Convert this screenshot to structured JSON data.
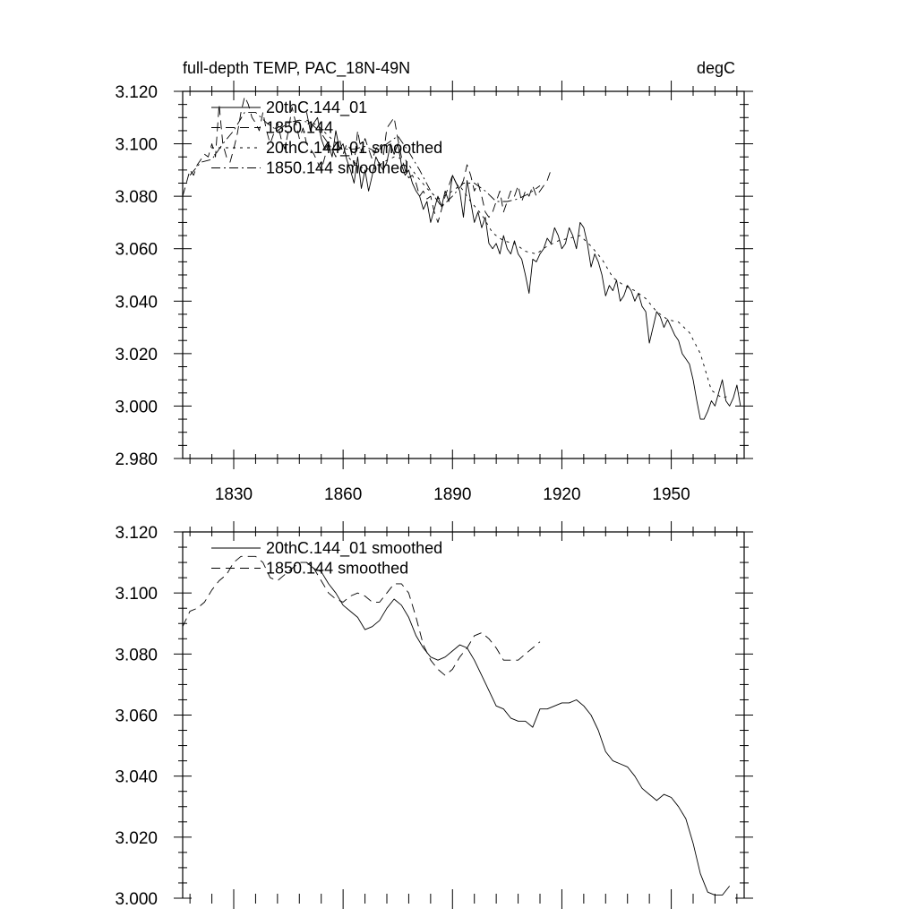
{
  "chart_data": [
    {
      "type": "line",
      "title_left": "full-depth TEMP, PAC_18N-49N",
      "title_right": "degC",
      "xlabel": "",
      "ylabel": "",
      "xlim": [
        1816,
        1970
      ],
      "ylim": [
        2.98,
        3.12
      ],
      "xticks": [
        1830,
        1860,
        1890,
        1920,
        1950
      ],
      "xtick_labels": [
        "1830",
        "1860",
        "1890",
        "1920",
        "1950"
      ],
      "yticks": [
        2.98,
        3.0,
        3.02,
        3.04,
        3.06,
        3.08,
        3.1,
        3.12
      ],
      "ytick_labels": [
        "2.980",
        "3.000",
        "3.020",
        "3.040",
        "3.060",
        "3.080",
        "3.100",
        "3.120"
      ],
      "legend": "top-left",
      "series": [
        {
          "name": "20thC.144_01",
          "style": "solid",
          "x": [
            1850,
            1851,
            1852,
            1853,
            1854,
            1855,
            1856,
            1857,
            1858,
            1859,
            1860,
            1861,
            1862,
            1863,
            1864,
            1865,
            1866,
            1867,
            1868,
            1869,
            1870,
            1871,
            1872,
            1873,
            1874,
            1875,
            1876,
            1877,
            1878,
            1879,
            1880,
            1881,
            1882,
            1883,
            1884,
            1885,
            1886,
            1887,
            1888,
            1889,
            1890,
            1891,
            1892,
            1893,
            1894,
            1895,
            1896,
            1897,
            1898,
            1899,
            1900,
            1901,
            1902,
            1903,
            1904,
            1905,
            1906,
            1907,
            1908,
            1909,
            1910,
            1911,
            1912,
            1913,
            1914,
            1915,
            1916,
            1917,
            1918,
            1919,
            1920,
            1921,
            1922,
            1923,
            1924,
            1925,
            1926,
            1927,
            1928,
            1929,
            1930,
            1931,
            1932,
            1933,
            1934,
            1935,
            1936,
            1937,
            1938,
            1939,
            1940,
            1941,
            1942,
            1943,
            1944,
            1945,
            1946,
            1947,
            1948,
            1949,
            1950,
            1951,
            1952,
            1953,
            1954,
            1955,
            1956,
            1957,
            1958,
            1959,
            1960,
            1961,
            1962,
            1963,
            1964,
            1965,
            1966,
            1967,
            1968,
            1969
          ],
          "y": [
            3.112,
            3.105,
            3.108,
            3.11,
            3.102,
            3.098,
            3.1,
            3.095,
            3.105,
            3.098,
            3.1,
            3.094,
            3.09,
            3.085,
            3.095,
            3.083,
            3.09,
            3.082,
            3.088,
            3.095,
            3.092,
            3.09,
            3.093,
            3.1,
            3.096,
            3.1,
            3.092,
            3.088,
            3.09,
            3.085,
            3.082,
            3.08,
            3.075,
            3.078,
            3.07,
            3.075,
            3.08,
            3.076,
            3.082,
            3.078,
            3.088,
            3.085,
            3.082,
            3.072,
            3.086,
            3.078,
            3.07,
            3.074,
            3.068,
            3.072,
            3.062,
            3.06,
            3.062,
            3.058,
            3.065,
            3.06,
            3.058,
            3.063,
            3.058,
            3.056,
            3.05,
            3.043,
            3.056,
            3.055,
            3.058,
            3.06,
            3.064,
            3.062,
            3.068,
            3.065,
            3.06,
            3.062,
            3.068,
            3.065,
            3.06,
            3.07,
            3.068,
            3.062,
            3.053,
            3.058,
            3.055,
            3.05,
            3.042,
            3.046,
            3.044,
            3.048,
            3.04,
            3.042,
            3.046,
            3.044,
            3.04,
            3.043,
            3.038,
            3.036,
            3.024,
            3.03,
            3.036,
            3.034,
            3.03,
            3.033,
            3.03,
            3.027,
            3.025,
            3.02,
            3.018,
            3.016,
            3.01,
            3.002,
            2.995,
            2.995,
            2.998,
            3.002,
            3.0,
            3.005,
            3.01,
            3.002,
            3.0,
            3.003,
            3.008,
            3.0
          ]
        },
        {
          "name": "1850.144",
          "style": "dashed",
          "x": [
            1816,
            1817,
            1818,
            1819,
            1820,
            1821,
            1822,
            1823,
            1824,
            1825,
            1826,
            1827,
            1828,
            1829,
            1830,
            1831,
            1832,
            1833,
            1834,
            1835,
            1836,
            1837,
            1838,
            1839,
            1840,
            1841,
            1842,
            1843,
            1844,
            1845,
            1846,
            1847,
            1848,
            1849,
            1850,
            1851,
            1852,
            1853,
            1854,
            1855,
            1856,
            1857,
            1858,
            1859,
            1860,
            1861,
            1862,
            1863,
            1864,
            1865,
            1866,
            1867,
            1868,
            1869,
            1870,
            1871,
            1872,
            1873,
            1874,
            1875,
            1876,
            1877,
            1878,
            1879,
            1880,
            1881,
            1882,
            1883,
            1884,
            1885,
            1886,
            1887,
            1888,
            1889,
            1890,
            1891,
            1892,
            1893,
            1894,
            1895,
            1896,
            1897,
            1898,
            1899,
            1900,
            1901,
            1902,
            1903,
            1904,
            1905,
            1906,
            1907,
            1908,
            1909,
            1910,
            1911,
            1912,
            1913,
            1914,
            1915,
            1916,
            1917
          ],
          "y": [
            3.08,
            3.085,
            3.09,
            3.088,
            3.092,
            3.094,
            3.096,
            3.095,
            3.1,
            3.095,
            3.115,
            3.1,
            3.095,
            3.093,
            3.098,
            3.104,
            3.112,
            3.118,
            3.115,
            3.11,
            3.108,
            3.105,
            3.112,
            3.105,
            3.1,
            3.104,
            3.108,
            3.102,
            3.098,
            3.105,
            3.114,
            3.108,
            3.102,
            3.106,
            3.1,
            3.098,
            3.096,
            3.093,
            3.09,
            3.095,
            3.1,
            3.098,
            3.095,
            3.102,
            3.096,
            3.1,
            3.098,
            3.092,
            3.105,
            3.097,
            3.102,
            3.098,
            3.094,
            3.098,
            3.1,
            3.095,
            3.106,
            3.108,
            3.11,
            3.102,
            3.095,
            3.09,
            3.087,
            3.088,
            3.085,
            3.08,
            3.082,
            3.079,
            3.08,
            3.074,
            3.07,
            3.075,
            3.08,
            3.084,
            3.088,
            3.085,
            3.083,
            3.086,
            3.092,
            3.088,
            3.082,
            3.085,
            3.08,
            3.074,
            3.072,
            3.074,
            3.078,
            3.082,
            3.074,
            3.078,
            3.082,
            3.08,
            3.084,
            3.078,
            3.082,
            3.08,
            3.084,
            3.08,
            3.082,
            3.084,
            3.086,
            3.09
          ]
        },
        {
          "name": "20thC.144_01 smoothed",
          "style": "dotted",
          "x": [
            1850,
            1853,
            1856,
            1859,
            1862,
            1865,
            1868,
            1871,
            1874,
            1877,
            1880,
            1883,
            1886,
            1889,
            1892,
            1895,
            1898,
            1901,
            1904,
            1907,
            1910,
            1913,
            1916,
            1919,
            1922,
            1925,
            1928,
            1931,
            1934,
            1937,
            1940,
            1943,
            1946,
            1949,
            1952,
            1955,
            1958,
            1961,
            1964,
            1966
          ],
          "y": [
            3.109,
            3.107,
            3.103,
            3.099,
            3.094,
            3.091,
            3.09,
            3.093,
            3.095,
            3.094,
            3.088,
            3.083,
            3.079,
            3.081,
            3.084,
            3.078,
            3.073,
            3.066,
            3.063,
            3.062,
            3.059,
            3.058,
            3.061,
            3.063,
            3.064,
            3.065,
            3.061,
            3.056,
            3.049,
            3.046,
            3.044,
            3.041,
            3.036,
            3.033,
            3.032,
            3.028,
            3.02,
            3.006,
            3.003,
            3.004
          ]
        },
        {
          "name": "1850.144 smoothed",
          "style": "dashdot",
          "x": [
            1818,
            1821,
            1824,
            1827,
            1830,
            1833,
            1836,
            1839,
            1842,
            1845,
            1848,
            1851,
            1854,
            1857,
            1860,
            1863,
            1866,
            1869,
            1872,
            1875,
            1878,
            1881,
            1884,
            1887,
            1890,
            1893,
            1896,
            1899,
            1902,
            1905,
            1908,
            1911,
            1914
          ],
          "y": [
            3.088,
            3.093,
            3.094,
            3.1,
            3.105,
            3.112,
            3.112,
            3.108,
            3.105,
            3.108,
            3.109,
            3.108,
            3.104,
            3.098,
            3.098,
            3.098,
            3.099,
            3.097,
            3.1,
            3.103,
            3.097,
            3.09,
            3.082,
            3.076,
            3.08,
            3.085,
            3.085,
            3.082,
            3.078,
            3.078,
            3.079,
            3.081,
            3.084
          ]
        }
      ]
    },
    {
      "type": "line",
      "xlabel": "",
      "ylabel": "",
      "xlim": [
        1816,
        1970
      ],
      "ylim": [
        3.0,
        3.12
      ],
      "xticks": [
        1830,
        1860,
        1890,
        1920,
        1950
      ],
      "yticks": [
        3.0,
        3.02,
        3.04,
        3.06,
        3.08,
        3.1,
        3.12
      ],
      "ytick_labels": [
        "3.000",
        "3.020",
        "3.040",
        "3.060",
        "3.080",
        "3.100",
        "3.120"
      ],
      "legend": "top-left",
      "series": [
        {
          "name": "20thC.144_01 smoothed",
          "style": "solid",
          "x": [
            1850,
            1852,
            1854,
            1856,
            1858,
            1860,
            1862,
            1864,
            1866,
            1868,
            1870,
            1872,
            1874,
            1876,
            1878,
            1880,
            1882,
            1884,
            1886,
            1888,
            1890,
            1892,
            1894,
            1896,
            1898,
            1900,
            1902,
            1904,
            1906,
            1908,
            1910,
            1912,
            1914,
            1916,
            1918,
            1920,
            1922,
            1924,
            1926,
            1928,
            1930,
            1932,
            1934,
            1936,
            1938,
            1940,
            1942,
            1944,
            1946,
            1948,
            1950,
            1952,
            1954,
            1956,
            1958,
            1960,
            1962,
            1964,
            1966
          ],
          "y": [
            3.11,
            3.108,
            3.107,
            3.103,
            3.1,
            3.096,
            3.094,
            3.092,
            3.088,
            3.089,
            3.091,
            3.095,
            3.098,
            3.096,
            3.092,
            3.086,
            3.082,
            3.079,
            3.078,
            3.079,
            3.081,
            3.083,
            3.082,
            3.078,
            3.073,
            3.068,
            3.063,
            3.062,
            3.059,
            3.058,
            3.058,
            3.056,
            3.062,
            3.062,
            3.063,
            3.064,
            3.064,
            3.065,
            3.063,
            3.06,
            3.055,
            3.048,
            3.045,
            3.044,
            3.043,
            3.04,
            3.036,
            3.034,
            3.032,
            3.034,
            3.033,
            3.03,
            3.026,
            3.018,
            3.008,
            3.002,
            3.001,
            3.001,
            3.004
          ]
        },
        {
          "name": "1850.144 smoothed",
          "style": "dashed",
          "x": [
            1816,
            1818,
            1820,
            1822,
            1824,
            1826,
            1828,
            1830,
            1832,
            1834,
            1836,
            1838,
            1840,
            1842,
            1844,
            1846,
            1848,
            1850,
            1852,
            1854,
            1856,
            1858,
            1860,
            1862,
            1864,
            1866,
            1868,
            1870,
            1872,
            1874,
            1876,
            1878,
            1880,
            1882,
            1884,
            1886,
            1888,
            1890,
            1892,
            1894,
            1896,
            1898,
            1900,
            1902,
            1904,
            1906,
            1908,
            1910,
            1912,
            1914
          ],
          "y": [
            3.089,
            3.094,
            3.095,
            3.097,
            3.101,
            3.104,
            3.106,
            3.11,
            3.112,
            3.112,
            3.112,
            3.11,
            3.105,
            3.104,
            3.106,
            3.108,
            3.11,
            3.11,
            3.108,
            3.104,
            3.1,
            3.098,
            3.097,
            3.099,
            3.1,
            3.099,
            3.097,
            3.097,
            3.1,
            3.103,
            3.103,
            3.1,
            3.092,
            3.083,
            3.078,
            3.075,
            3.073,
            3.075,
            3.079,
            3.082,
            3.086,
            3.087,
            3.085,
            3.082,
            3.078,
            3.078,
            3.078,
            3.08,
            3.082,
            3.084
          ]
        }
      ]
    }
  ]
}
